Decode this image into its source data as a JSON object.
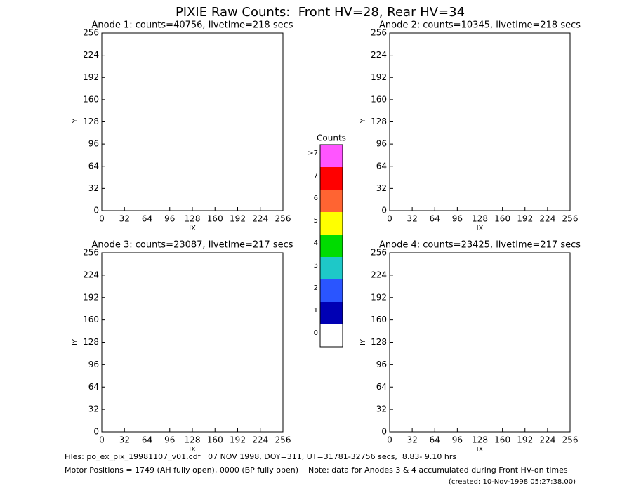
{
  "title": "PIXIE Raw Counts:  Front HV=28, Rear HV=34",
  "chart_data": [
    {
      "type": "heatmap",
      "title": "Anode 1: counts=40756, livetime=218 secs",
      "x_label": "IX",
      "y_label": "IY",
      "xlim": [
        0,
        256
      ],
      "ylim": [
        0,
        256
      ],
      "xticks": [
        0,
        32,
        64,
        96,
        128,
        160,
        192,
        224,
        256
      ],
      "yticks": [
        0,
        32,
        64,
        96,
        128,
        160,
        192,
        224,
        256
      ]
    },
    {
      "type": "heatmap",
      "title": "Anode 2: counts=10345, livetime=218 secs",
      "x_label": "IX",
      "y_label": "IY",
      "xlim": [
        0,
        256
      ],
      "ylim": [
        0,
        256
      ],
      "xticks": [
        0,
        32,
        64,
        96,
        128,
        160,
        192,
        224,
        256
      ],
      "yticks": [
        0,
        32,
        64,
        96,
        128,
        160,
        192,
        224,
        256
      ]
    },
    {
      "type": "heatmap",
      "title": "Anode 3: counts=23087, livetime=217 secs",
      "x_label": "IX",
      "y_label": "IY",
      "xlim": [
        0,
        256
      ],
      "ylim": [
        0,
        256
      ],
      "xticks": [
        0,
        32,
        64,
        96,
        128,
        160,
        192,
        224,
        256
      ],
      "yticks": [
        0,
        32,
        64,
        96,
        128,
        160,
        192,
        224,
        256
      ]
    },
    {
      "type": "heatmap",
      "title": "Anode 4: counts=23425, livetime=217 secs",
      "x_label": "IX",
      "y_label": "IY",
      "xlim": [
        0,
        256
      ],
      "ylim": [
        0,
        256
      ],
      "xticks": [
        0,
        32,
        64,
        96,
        128,
        160,
        192,
        224,
        256
      ],
      "yticks": [
        0,
        32,
        64,
        96,
        128,
        160,
        192,
        224,
        256
      ]
    }
  ],
  "colorbar": {
    "title": "Counts",
    "labels": [
      "0",
      "1",
      "2",
      "3",
      "4",
      "5",
      "6",
      "7",
      ">7"
    ],
    "colors": [
      "#ffffff",
      "#0000b4",
      "#2a55ff",
      "#1ec8c8",
      "#00dc00",
      "#ffff00",
      "#ff6432",
      "#ff0000",
      "#ff55ff"
    ]
  },
  "footer": {
    "files": "Files: po_ex_pix_19981107_v01.cdf   07 NOV 1998, DOY=311, UT=31781-32756 secs,  8.83- 9.10 hrs",
    "motor": "Motor Positions = 1749 (AH fully open), 0000 (BP fully open)    Note: data for Anodes 3 & 4 accumulated during Front HV-on times",
    "created": "(created: 10-Nov-1998 05:27:38.00)"
  }
}
